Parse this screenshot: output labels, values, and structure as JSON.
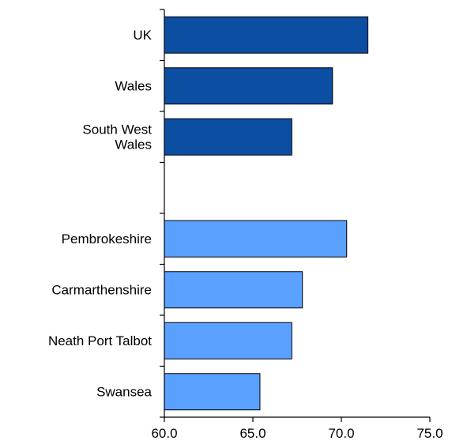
{
  "chart_data": {
    "type": "bar",
    "orientation": "horizontal",
    "categories": [
      "UK",
      "Wales",
      "South West Wales",
      "",
      "Pembrokeshire",
      "Carmarthenshire",
      "Neath Port Talbot",
      "Swansea"
    ],
    "category_lines": [
      [
        "UK"
      ],
      [
        "Wales"
      ],
      [
        "South West",
        "Wales"
      ],
      [],
      [
        "Pembrokeshire"
      ],
      [
        "Carmarthenshire"
      ],
      [
        "Neath Port Talbot"
      ],
      [
        "Swansea"
      ]
    ],
    "values": [
      71.5,
      69.5,
      67.2,
      null,
      70.3,
      67.8,
      67.2,
      65.4
    ],
    "colors": [
      "#0b4ea2",
      "#0b4ea2",
      "#0b4ea2",
      null,
      "#5aa0ff",
      "#5aa0ff",
      "#5aa0ff",
      "#5aa0ff"
    ],
    "xlim": [
      60.0,
      75.0
    ],
    "x_ticks": [
      "60.0",
      "65.0",
      "70.0",
      "75.0"
    ],
    "title": "",
    "xlabel": "",
    "ylabel": "",
    "grid": false
  }
}
